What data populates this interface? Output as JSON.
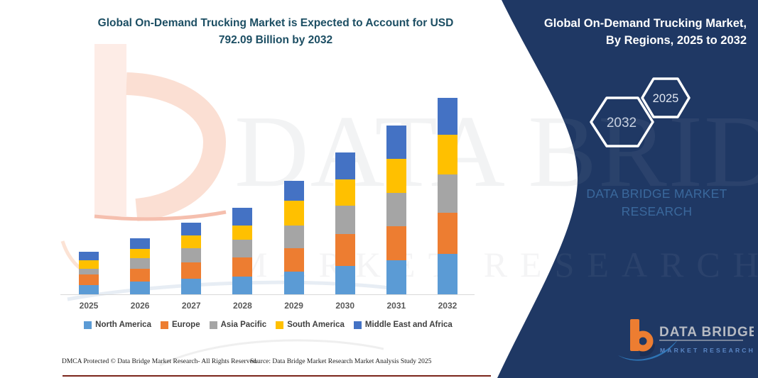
{
  "title": {
    "line1": "Global On-Demand Trucking Market is Expected to Account for USD",
    "line2": "792.09 Billion by 2032"
  },
  "chart_data": {
    "type": "bar",
    "stacked": true,
    "title": "Global On-Demand Trucking Market is Expected to Account for USD 792.09 Billion by 2032",
    "xlabel": "",
    "ylabel": "",
    "unit": "USD Billion (values estimated from bar heights; only the 2032 total of 792.09 is labeled)",
    "ylim": [
      0,
      800
    ],
    "grid": false,
    "y_axis_visible": false,
    "legend_position": "bottom",
    "categories": [
      "2025",
      "2026",
      "2027",
      "2028",
      "2029",
      "2030",
      "2031",
      "2032"
    ],
    "series": [
      {
        "name": "North America",
        "color": "#5b9bd5",
        "values": [
          37,
          51,
          63,
          72,
          92,
          114,
          137,
          163
        ]
      },
      {
        "name": "Europe",
        "color": "#ed7d31",
        "values": [
          43,
          51,
          66,
          77,
          94,
          129,
          137,
          166
        ]
      },
      {
        "name": "Asia Pacific",
        "color": "#a5a5a5",
        "values": [
          23,
          43,
          57,
          72,
          92,
          114,
          134,
          154
        ]
      },
      {
        "name": "South America",
        "color": "#ffc000",
        "values": [
          34,
          37,
          51,
          57,
          100,
          106,
          137,
          160
        ]
      },
      {
        "name": "Middle East and Africa",
        "color": "#4472c4",
        "values": [
          34,
          43,
          51,
          72,
          80,
          109,
          134,
          149
        ]
      }
    ],
    "estimated_totals": [
      171,
      225,
      288,
      350,
      458,
      572,
      679,
      792
    ]
  },
  "side_panel": {
    "bg_color": "#1f3864",
    "title_line1": "Global On-Demand Trucking Market,",
    "title_line2": "By Regions, 2025 to 2032",
    "hexagons": [
      {
        "label": "2032"
      },
      {
        "label": "2025"
      }
    ],
    "brand_caption": "DATA BRIDGE MARKET RESEARCH",
    "logo": {
      "name": "DATA BRIDGE",
      "tagline": "MARKET RESEARCH",
      "accent_orange": "#ed7d31",
      "accent_blue": "#2e75b6"
    }
  },
  "watermark": {
    "line1": "DATA BRIDGE",
    "line2": "MARKET RESEARCH"
  },
  "footer": {
    "left": "DMCA Protected © Data Bridge Market Research-  All Rights Reserved.",
    "right": "Source: Data Bridge Market Research  Market Analysis Study 2025",
    "rule_color": "#7a241a"
  }
}
